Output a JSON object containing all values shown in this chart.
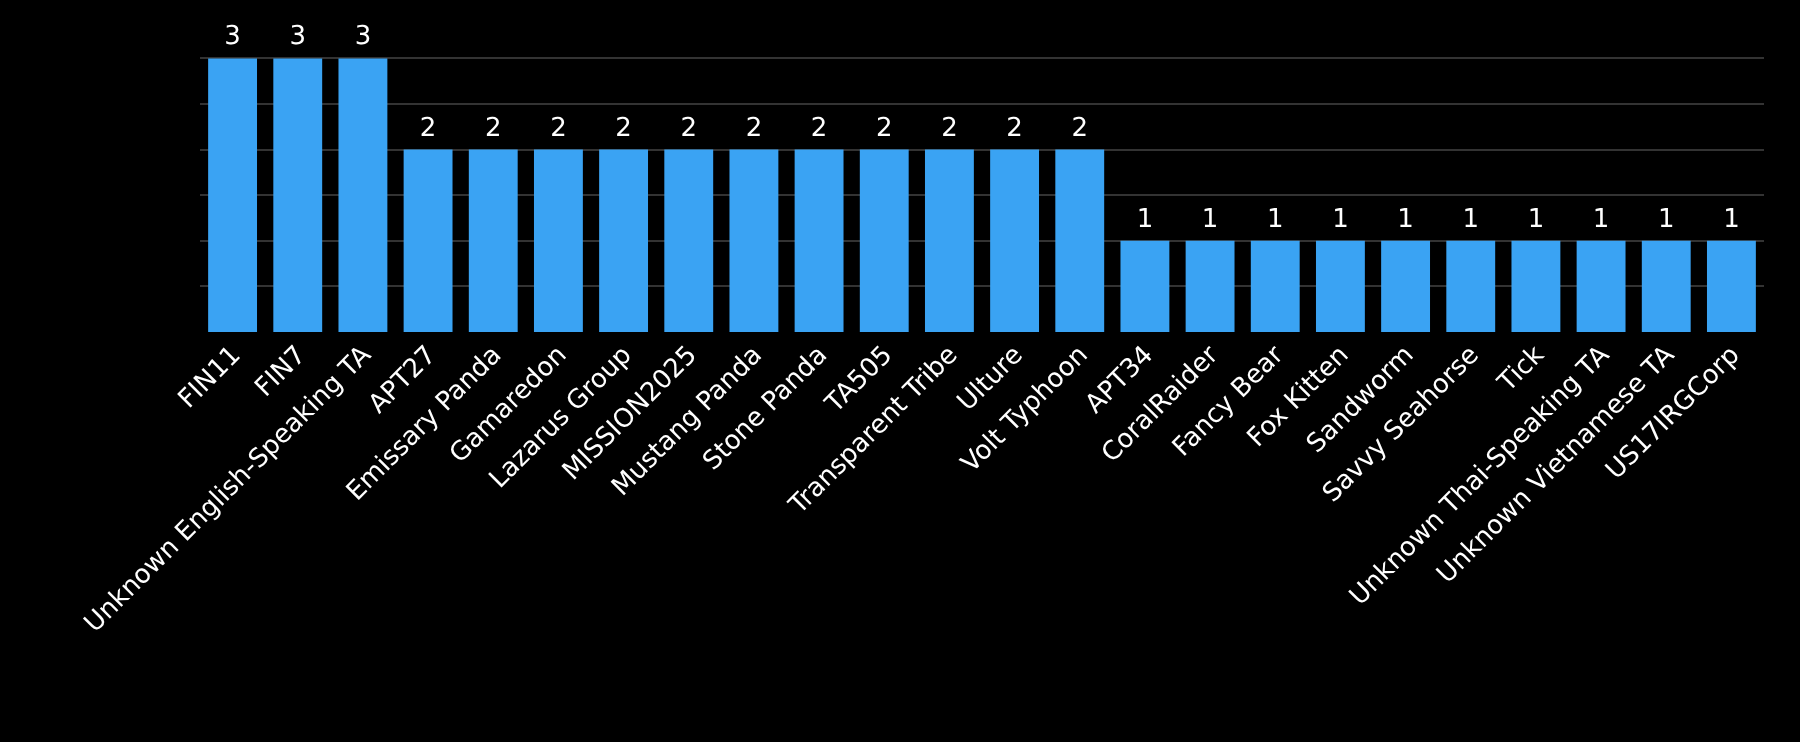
{
  "chart_data": {
    "type": "bar",
    "categories": [
      "FIN11",
      "FIN7",
      "Unknown English-Speaking TA",
      "APT27",
      "Emissary Panda",
      "Gamaredon",
      "Lazarus Group",
      "MISSION2025",
      "Mustang Panda",
      "Stone Panda",
      "TA505",
      "Transparent Tribe",
      "Ulture",
      "Volt Typhoon",
      "APT34",
      "CoralRaider",
      "Fancy Bear",
      "Fox Kitten",
      "Sandworm",
      "Savvy Seahorse",
      "Tick",
      "Unknown Thai-Speaking TA",
      "Unknown Vietnamese TA",
      "US17IRGCorp"
    ],
    "values": [
      3,
      3,
      3,
      2,
      2,
      2,
      2,
      2,
      2,
      2,
      2,
      2,
      2,
      2,
      1,
      1,
      1,
      1,
      1,
      1,
      1,
      1,
      1,
      1
    ],
    "color": "#3aa3f3",
    "data_labels": true,
    "grid": "y",
    "tick_labels": "x"
  }
}
